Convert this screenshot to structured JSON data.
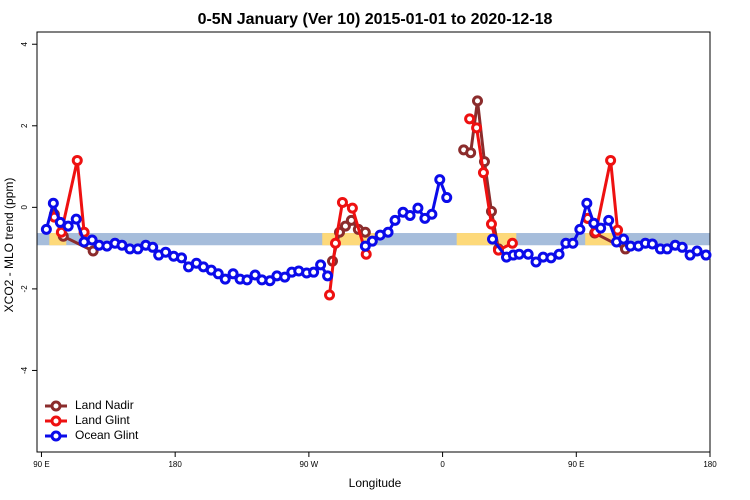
{
  "chart_data": {
    "type": "line",
    "title": "0-5N January (Ver 10)   2015-01-01 to 2020-12-18",
    "xlabel": "Longitude",
    "ylabel": "XCO2 - MLO trend (ppm)",
    "xlim": [
      87,
      540
    ],
    "ylim": [
      -6,
      4.3
    ],
    "xticks": [
      {
        "value": 90,
        "label": "90 E"
      },
      180,
      {
        "value": 270,
        "label": "90 W"
      },
      {
        "value": 360,
        "label": "0"
      },
      {
        "value": 450,
        "label": "90 E"
      },
      {
        "value": 540,
        "label": "180"
      }
    ],
    "yticks": [
      -4,
      -2,
      0,
      2,
      4
    ],
    "band": {
      "ylim": [
        -0.93,
        -0.63
      ],
      "color": "#a6bddb",
      "land_color": "#fdd97a",
      "land": [
        [
          95.3,
          106.7
        ],
        [
          279,
          316
        ],
        [
          369.5,
          409.6
        ],
        [
          456,
          476.5
        ]
      ]
    },
    "legend": "bottom-left",
    "series": [
      {
        "name": "Land Nadir",
        "color": "#8b2c2c",
        "x": [
          98.7,
          104.7,
          124.8,
          null,
          285.9,
          290.6,
          294.6,
          298.6,
          303.3,
          308.0,
          null,
          374.2,
          378.9,
          383.5,
          388.2,
          392.9,
          397.6,
          null,
          457.7,
          462.4,
          483.1
        ],
        "values": [
          -0.17,
          -0.71,
          -1.07,
          null,
          -1.32,
          -0.61,
          -0.46,
          -0.32,
          -0.54,
          -0.61,
          null,
          1.41,
          1.34,
          2.61,
          1.12,
          -0.1,
          -1.02,
          null,
          -0.27,
          -0.63,
          -1.02
        ]
      },
      {
        "name": "Land Glint",
        "color": "#ee1111",
        "x": [
          98.7,
          103.4,
          114.1,
          118.7,
          null,
          283.9,
          287.9,
          292.6,
          299.3,
          308.6,
          null,
          378.2,
          382.9,
          387.5,
          392.9,
          397.6,
          407.0,
          null,
          457.7,
          463.1,
          473.1,
          477.8
        ],
        "values": [
          -0.24,
          -0.61,
          1.15,
          -0.61,
          null,
          -2.15,
          -0.88,
          0.12,
          -0.02,
          -1.15,
          null,
          2.17,
          1.95,
          0.85,
          -0.41,
          -1.05,
          -0.88,
          null,
          -0.27,
          -0.61,
          1.15,
          -0.56
        ]
      },
      {
        "name": "Ocean Glint",
        "color": "#0b0bea",
        "x": [
          93.3,
          98.0,
          102.7,
          108.0,
          113.4,
          118.7,
          124.1,
          128.8,
          134.1,
          139.5,
          144.2,
          149.5,
          154.9,
          160.2,
          164.9,
          168.9,
          173.6,
          179.0,
          184.3,
          189.0,
          194.3,
          199.0,
          204.3,
          209.0,
          213.7,
          219.0,
          223.7,
          228.4,
          233.8,
          238.4,
          243.8,
          248.5,
          253.8,
          258.5,
          263.2,
          268.5,
          273.2,
          277.9,
          282.6,
          null,
          308.0,
          312.7,
          318.0,
          323.3,
          328.0,
          333.4,
          338.1,
          343.4,
          348.1,
          352.8,
          358.1,
          362.8,
          null,
          393.6,
          403.0,
          407.6,
          411.6,
          417.6,
          422.9,
          427.7,
          433.0,
          438.4,
          443.0,
          447.7,
          452.4,
          457.1,
          461.8,
          466.4,
          471.8,
          477.1,
          481.8,
          486.5,
          491.8,
          496.5,
          501.2,
          506.6,
          511.2,
          516.6,
          521.3,
          526.6,
          531.3,
          537.3
        ],
        "values": [
          -0.54,
          0.1,
          -0.37,
          -0.46,
          -0.29,
          -0.85,
          -0.8,
          -0.93,
          -0.95,
          -0.88,
          -0.93,
          -1.02,
          -1.02,
          -0.93,
          -0.98,
          -1.17,
          -1.1,
          -1.2,
          -1.24,
          -1.46,
          -1.37,
          -1.46,
          -1.54,
          -1.63,
          -1.76,
          -1.63,
          -1.76,
          -1.78,
          -1.66,
          -1.78,
          -1.8,
          -1.68,
          -1.71,
          -1.59,
          -1.56,
          -1.61,
          -1.59,
          -1.41,
          -1.68,
          null,
          -0.95,
          -0.83,
          -0.68,
          -0.61,
          -0.32,
          -0.12,
          -0.2,
          -0.02,
          -0.27,
          -0.17,
          0.68,
          0.24,
          null,
          -0.78,
          -1.22,
          -1.17,
          -1.15,
          -1.15,
          -1.34,
          -1.22,
          -1.24,
          -1.15,
          -0.88,
          -0.88,
          -0.54,
          0.1,
          -0.39,
          -0.51,
          -0.32,
          -0.85,
          -0.78,
          -0.95,
          -0.95,
          -0.88,
          -0.9,
          -1.02,
          -1.02,
          -0.93,
          -0.98,
          -1.17,
          -1.07,
          -1.17
        ]
      }
    ]
  }
}
